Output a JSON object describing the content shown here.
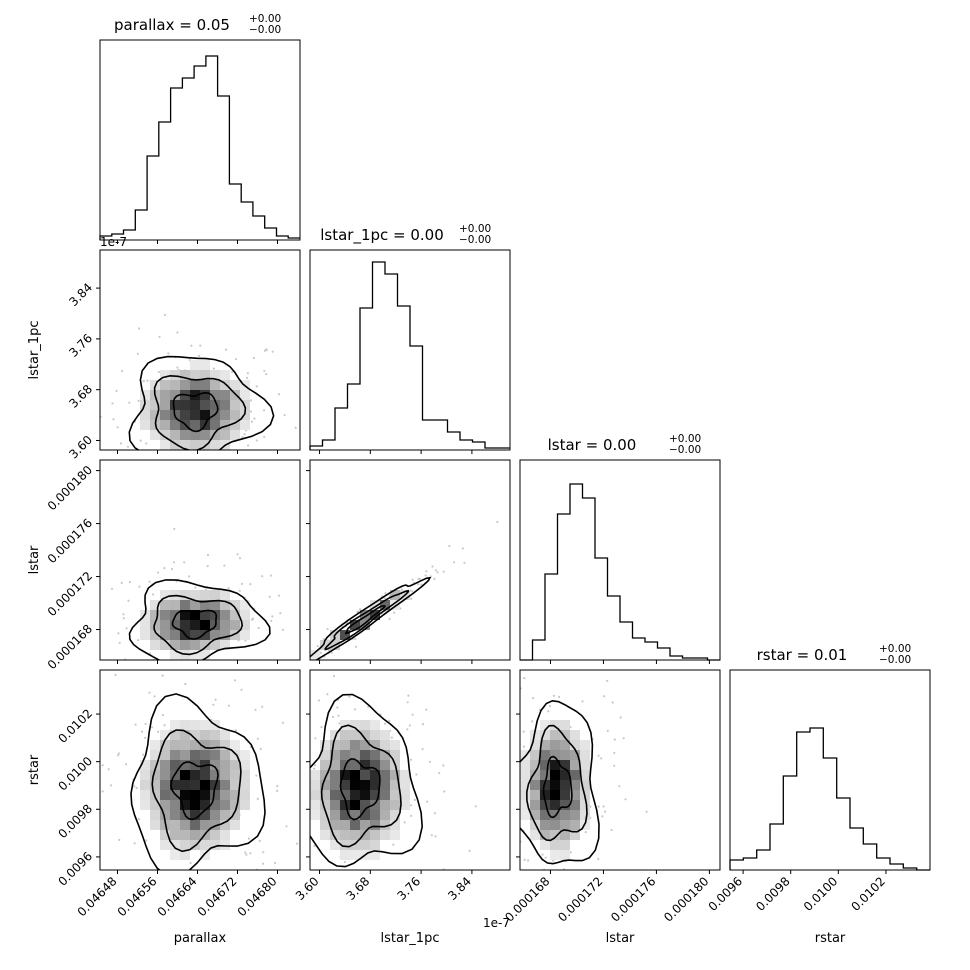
{
  "chart_data": {
    "type": "corner",
    "parameters": [
      "parallax",
      "lstar_1pc",
      "lstar",
      "rstar"
    ],
    "axis_labels": [
      "parallax",
      "lstar_1pc",
      "lstar",
      "rstar"
    ],
    "offset_labels": {
      "lstar_1pc": "1e-7"
    },
    "titles": [
      {
        "param": "parallax",
        "text": "parallax = 0.05",
        "sup": "+0.00",
        "sub": "−0.00"
      },
      {
        "param": "lstar_1pc",
        "text": "lstar_1pc = 0.00",
        "sup": "+0.00",
        "sub": "−0.00"
      },
      {
        "param": "lstar",
        "text": "lstar = 0.00",
        "sup": "+0.00",
        "sub": "−0.00"
      },
      {
        "param": "rstar",
        "text": "rstar = 0.01",
        "sup": "+0.00",
        "sub": "−0.00"
      }
    ],
    "ranges": {
      "parallax": [
        0.046445,
        0.046845
      ],
      "lstar_1pc": [
        3.585,
        3.9
      ],
      "lstar": [
        0.0001657,
        0.0001808
      ],
      "rstar": [
        0.009545,
        0.010385
      ]
    },
    "ticks": {
      "parallax": [
        0.04648,
        0.04656,
        0.04664,
        0.04672,
        0.0468
      ],
      "lstar_1pc": [
        3.6,
        3.68,
        3.76,
        3.84
      ],
      "lstar": [
        0.000168,
        0.000172,
        0.000176,
        0.00018
      ],
      "rstar": [
        0.0096,
        0.0098,
        0.01,
        0.0102
      ]
    },
    "tick_labels": {
      "parallax": [
        "0.04648",
        "0.04656",
        "0.04664",
        "0.04672",
        "0.04680"
      ],
      "lstar_1pc": [
        "3.60",
        "3.68",
        "3.76",
        "3.84"
      ],
      "lstar": [
        "0.000168",
        "0.000172",
        "0.000176",
        "0.000180"
      ],
      "rstar": [
        "0.0096",
        "0.0098",
        "0.0100",
        "0.0102"
      ]
    },
    "histograms": {
      "parallax": [
        0.02,
        0.03,
        0.05,
        0.15,
        0.42,
        0.59,
        0.76,
        0.81,
        0.87,
        0.92,
        0.72,
        0.28,
        0.19,
        0.12,
        0.06,
        0.02,
        0.01
      ],
      "lstar_1pc": [
        0.02,
        0.05,
        0.21,
        0.33,
        0.71,
        0.94,
        0.88,
        0.72,
        0.52,
        0.15,
        0.15,
        0.09,
        0.05,
        0.04,
        0.01,
        0.01
      ],
      "lstar": [
        0.0,
        0.1,
        0.43,
        0.73,
        0.88,
        0.81,
        0.51,
        0.32,
        0.19,
        0.11,
        0.09,
        0.06,
        0.02,
        0.01,
        0.01,
        0.0
      ],
      "rstar": [
        0.05,
        0.06,
        0.1,
        0.23,
        0.47,
        0.69,
        0.71,
        0.56,
        0.36,
        0.21,
        0.13,
        0.06,
        0.03,
        0.01,
        0.0
      ]
    },
    "density_centers": [
      {
        "row": 1,
        "col": 0,
        "x": 0.046635,
        "y": 3.648,
        "sx": 5e-05,
        "sy": 0.032,
        "rho": 0.05
      },
      {
        "row": 2,
        "col": 0,
        "x": 0.046635,
        "y": 0.0001685,
        "sx": 5e-05,
        "sy": 1.15e-06,
        "rho": 0.05
      },
      {
        "row": 2,
        "col": 1,
        "x": 3.67,
        "y": 0.0001687,
        "sx": 0.035,
        "sy": 1.2e-06,
        "rho": 0.97
      },
      {
        "row": 3,
        "col": 0,
        "x": 0.046635,
        "y": 0.00989,
        "sx": 5e-05,
        "sy": 0.00013,
        "rho": 0.0
      },
      {
        "row": 3,
        "col": 1,
        "x": 3.663,
        "y": 0.00989,
        "sx": 0.035,
        "sy": 0.00013,
        "rho": 0.0
      },
      {
        "row": 3,
        "col": 2,
        "x": 0.0001685,
        "y": 0.00989,
        "sx": 1.2e-06,
        "sy": 0.00013,
        "rho": 0.0
      }
    ],
    "grid": false,
    "legend": "none"
  }
}
